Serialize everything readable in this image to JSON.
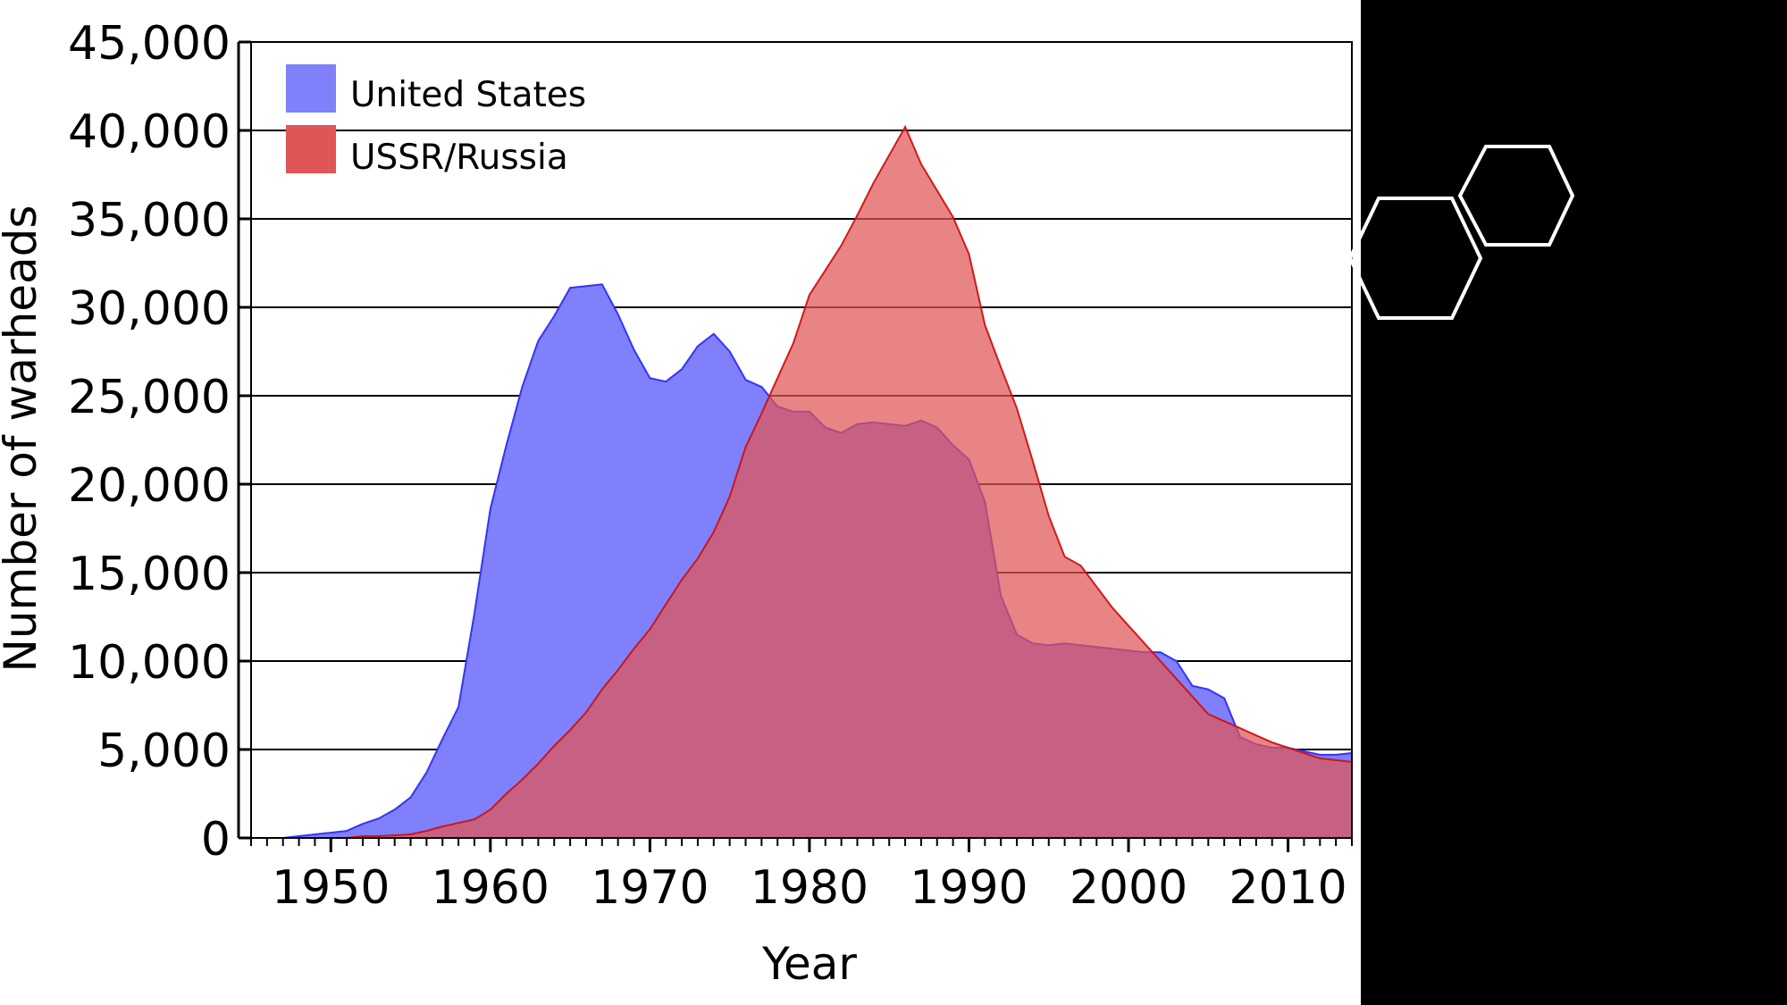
{
  "chart_data": {
    "type": "area",
    "xlabel": "Year",
    "ylabel": "Number of warheads",
    "xlim": [
      1945,
      2014
    ],
    "ylim": [
      0,
      45000
    ],
    "x_ticks": [
      "1950",
      "1960",
      "1970",
      "1980",
      "1990",
      "2000",
      "2010"
    ],
    "y_ticks": [
      "0",
      "5,000",
      "10,000",
      "15,000",
      "20,000",
      "25,000",
      "30,000",
      "35,000",
      "40,000",
      "45,000"
    ],
    "grid": "horizontal",
    "legend_position": "top-left",
    "series": [
      {
        "name": "United States",
        "color": "#8080fa",
        "stroke": "#3333ff",
        "points": [
          [
            1945,
            0
          ],
          [
            1946,
            0
          ],
          [
            1947,
            0
          ],
          [
            1948,
            100
          ],
          [
            1949,
            200
          ],
          [
            1950,
            300
          ],
          [
            1951,
            400
          ],
          [
            1952,
            800
          ],
          [
            1953,
            1100
          ],
          [
            1954,
            1600
          ],
          [
            1955,
            2300
          ],
          [
            1956,
            3700
          ],
          [
            1957,
            5600
          ],
          [
            1958,
            7400
          ],
          [
            1959,
            12700
          ],
          [
            1960,
            18600
          ],
          [
            1961,
            22200
          ],
          [
            1962,
            25500
          ],
          [
            1963,
            28100
          ],
          [
            1964,
            29500
          ],
          [
            1965,
            31100
          ],
          [
            1966,
            31200
          ],
          [
            1967,
            31300
          ],
          [
            1968,
            29600
          ],
          [
            1969,
            27600
          ],
          [
            1970,
            26000
          ],
          [
            1971,
            25800
          ],
          [
            1972,
            26500
          ],
          [
            1973,
            27800
          ],
          [
            1974,
            28500
          ],
          [
            1975,
            27500
          ],
          [
            1976,
            25900
          ],
          [
            1977,
            25500
          ],
          [
            1978,
            24400
          ],
          [
            1979,
            24100
          ],
          [
            1980,
            24100
          ],
          [
            1981,
            23200
          ],
          [
            1982,
            22900
          ],
          [
            1983,
            23400
          ],
          [
            1984,
            23500
          ],
          [
            1985,
            23400
          ],
          [
            1986,
            23300
          ],
          [
            1987,
            23600
          ],
          [
            1988,
            23200
          ],
          [
            1989,
            22200
          ],
          [
            1990,
            21400
          ],
          [
            1991,
            19000
          ],
          [
            1992,
            13700
          ],
          [
            1993,
            11500
          ],
          [
            1994,
            11000
          ],
          [
            1995,
            10900
          ],
          [
            1996,
            11000
          ],
          [
            1997,
            10900
          ],
          [
            1998,
            10800
          ],
          [
            1999,
            10700
          ],
          [
            2000,
            10600
          ],
          [
            2001,
            10500
          ],
          [
            2002,
            10500
          ],
          [
            2003,
            10000
          ],
          [
            2004,
            8600
          ],
          [
            2005,
            8400
          ],
          [
            2006,
            7900
          ],
          [
            2007,
            5700
          ],
          [
            2008,
            5300
          ],
          [
            2009,
            5100
          ],
          [
            2010,
            5100
          ],
          [
            2011,
            4900
          ],
          [
            2012,
            4700
          ],
          [
            2013,
            4700
          ],
          [
            2014,
            4800
          ]
        ]
      },
      {
        "name": "USSR/Russia",
        "color": "#e05555",
        "stroke": "#d01010",
        "points": [
          [
            1945,
            0
          ],
          [
            1948,
            0
          ],
          [
            1949,
            0
          ],
          [
            1950,
            0
          ],
          [
            1951,
            0
          ],
          [
            1952,
            100
          ],
          [
            1953,
            100
          ],
          [
            1954,
            150
          ],
          [
            1955,
            200
          ],
          [
            1956,
            400
          ],
          [
            1957,
            650
          ],
          [
            1958,
            850
          ],
          [
            1959,
            1050
          ],
          [
            1960,
            1600
          ],
          [
            1961,
            2500
          ],
          [
            1962,
            3300
          ],
          [
            1963,
            4200
          ],
          [
            1964,
            5200
          ],
          [
            1965,
            6100
          ],
          [
            1966,
            7100
          ],
          [
            1967,
            8400
          ],
          [
            1968,
            9500
          ],
          [
            1969,
            10700
          ],
          [
            1970,
            11800
          ],
          [
            1971,
            13200
          ],
          [
            1972,
            14600
          ],
          [
            1973,
            15800
          ],
          [
            1974,
            17300
          ],
          [
            1975,
            19300
          ],
          [
            1976,
            22100
          ],
          [
            1977,
            24000
          ],
          [
            1978,
            26000
          ],
          [
            1979,
            28000
          ],
          [
            1980,
            30700
          ],
          [
            1981,
            32100
          ],
          [
            1982,
            33500
          ],
          [
            1983,
            35200
          ],
          [
            1984,
            37000
          ],
          [
            1985,
            38600
          ],
          [
            1986,
            40200
          ],
          [
            1987,
            38100
          ],
          [
            1988,
            36600
          ],
          [
            1989,
            35100
          ],
          [
            1990,
            33000
          ],
          [
            1991,
            29000
          ],
          [
            1992,
            26600
          ],
          [
            1993,
            24300
          ],
          [
            1994,
            21300
          ],
          [
            1995,
            18200
          ],
          [
            1996,
            15900
          ],
          [
            1997,
            15400
          ],
          [
            1998,
            14200
          ],
          [
            1999,
            13000
          ],
          [
            2000,
            12000
          ],
          [
            2001,
            11000
          ],
          [
            2002,
            10000
          ],
          [
            2003,
            9000
          ],
          [
            2004,
            8000
          ],
          [
            2005,
            7000
          ],
          [
            2006,
            6600
          ],
          [
            2007,
            6200
          ],
          [
            2008,
            5800
          ],
          [
            2009,
            5400
          ],
          [
            2010,
            5100
          ],
          [
            2011,
            4800
          ],
          [
            2012,
            4500
          ],
          [
            2013,
            4400
          ],
          [
            2014,
            4300
          ]
        ]
      }
    ]
  }
}
